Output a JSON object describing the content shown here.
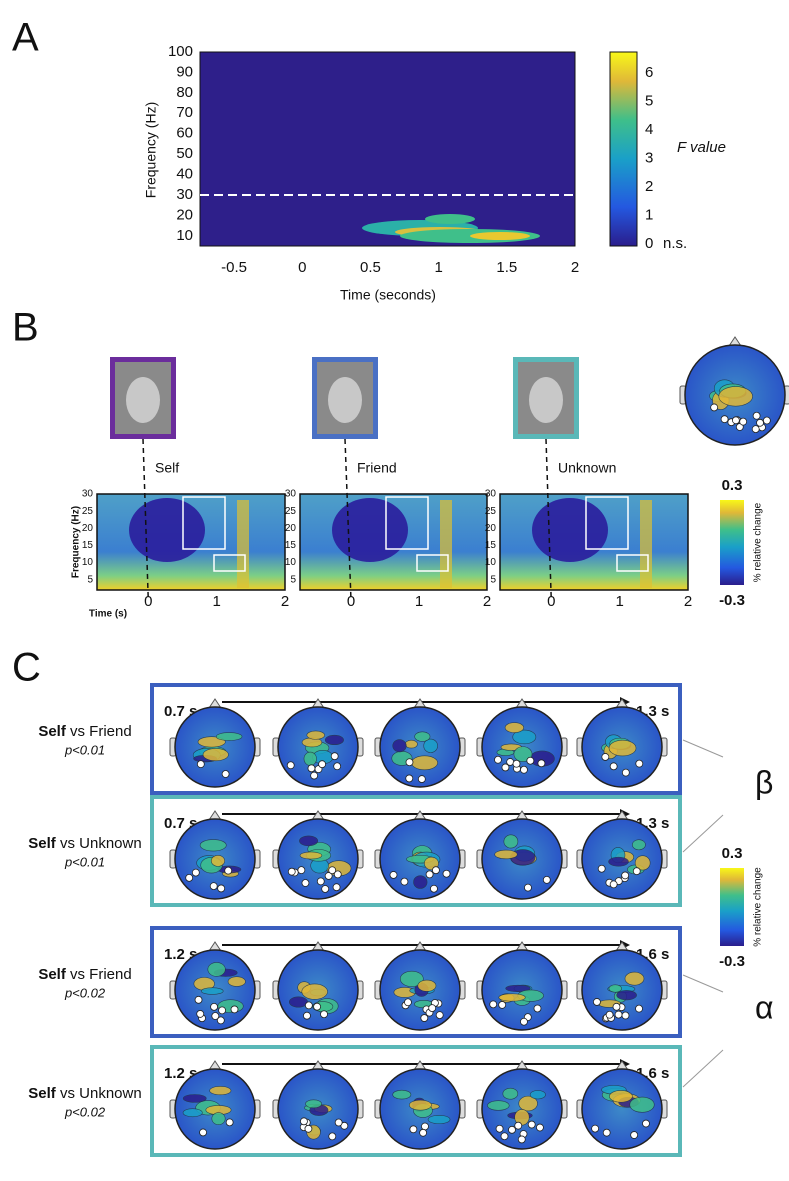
{
  "panel_a": {
    "label": "A",
    "y_label": "Frequency (Hz)",
    "x_label": "Time (seconds)",
    "yticks": [
      10,
      20,
      30,
      40,
      50,
      60,
      70,
      80,
      90,
      100
    ],
    "xticks": [
      -0.5,
      0,
      0.5,
      1,
      1.5,
      2
    ],
    "colorbar_ticks": [
      0,
      1,
      2,
      3,
      4,
      5,
      6
    ],
    "colorbar_label": "F value",
    "ns_label": "n.s."
  },
  "panel_b": {
    "label": "B",
    "conditions": [
      "Self",
      "Friend",
      "Unknown"
    ],
    "y_label": "Frequency (Hz)",
    "yticks": [
      5,
      10,
      15,
      20,
      25,
      30
    ],
    "x_label": "Time (s)",
    "xticks": [
      0,
      1,
      2
    ],
    "colorbar": {
      "max": "0.3",
      "min": "-0.3",
      "label": "% relative change"
    }
  },
  "panel_c": {
    "label": "C",
    "rows": [
      {
        "bold": "Self",
        "rest": " vs Friend",
        "p": "p<0.01",
        "start": "0.7 s",
        "end": "1.3 s"
      },
      {
        "bold": "Self",
        "rest": " vs Unknown",
        "p": "p<0.01",
        "start": "0.7 s",
        "end": "1.3 s"
      },
      {
        "bold": "Self",
        "rest": " vs Friend",
        "p": "p<0.02",
        "start": "1.2 s",
        "end": "1.6 s"
      },
      {
        "bold": "Self",
        "rest": " vs Unknown",
        "p": "p<0.02",
        "start": "1.2 s",
        "end": "1.6 s"
      }
    ],
    "bands": [
      "β",
      "α"
    ],
    "colorbar": {
      "max": "0.3",
      "min": "-0.3",
      "label": "% relative change"
    }
  }
}
